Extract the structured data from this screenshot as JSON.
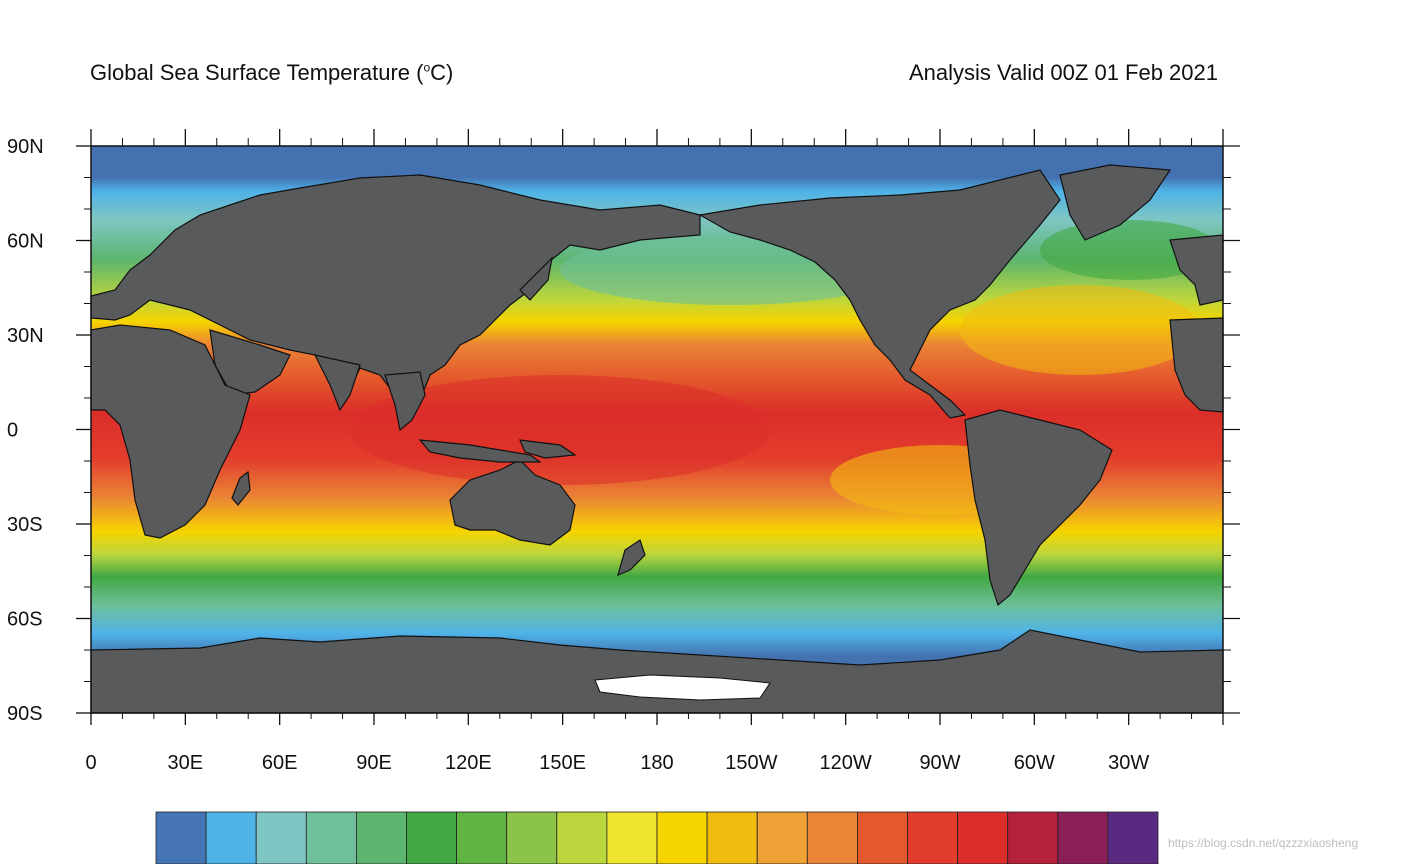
{
  "titles": {
    "left_main": "Global Sea Surface Temperature (",
    "left_sup": "o",
    "left_unit": "C)",
    "right": "Analysis Valid 00Z 01 Feb 2021"
  },
  "axes": {
    "x_ticks": [
      "0",
      "30E",
      "60E",
      "90E",
      "120E",
      "150E",
      "180",
      "150W",
      "120W",
      "90W",
      "60W",
      "30W"
    ],
    "y_ticks": [
      "90N",
      "60N",
      "30N",
      "0",
      "30S",
      "60S",
      "90S"
    ]
  },
  "colorbar": {
    "colors": [
      "#4575b4",
      "#4fb3e8",
      "#7ec6c3",
      "#6ebf9a",
      "#5db56f",
      "#41a843",
      "#5fb443",
      "#8cc44a",
      "#bcd63d",
      "#efe531",
      "#f6d400",
      "#f2bb10",
      "#eea236",
      "#ea8436",
      "#e4592c",
      "#e23d2c",
      "#db2e2a",
      "#b5213b",
      "#8b1f58",
      "#5a2a82"
    ]
  },
  "colors": {
    "land": "#585a5c",
    "polar_ocean": "#4472b0",
    "ice": "#ffffff"
  },
  "watermark": "https://blog.csdn.net/qzzzxiaosheng"
}
